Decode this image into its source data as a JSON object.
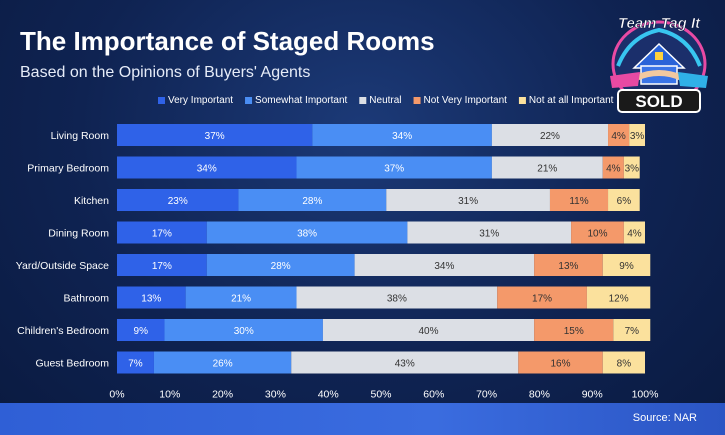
{
  "title": "The Importance of Staged Rooms",
  "subtitle": "Based on the Opinions of Buyers' Agents",
  "source": "Source: NAR",
  "logo": {
    "text_top": "Team Tag It",
    "text_sign": "SOLD",
    "icon": "house-handshake-icon"
  },
  "chart_data": {
    "type": "bar",
    "orientation": "horizontal",
    "stacked": true,
    "categories": [
      "Living Room",
      "Primary Bedroom",
      "Kitchen",
      "Dining Room",
      "Yard/Outside Space",
      "Bathroom",
      "Children's Bedroom",
      "Guest Bedroom"
    ],
    "series": [
      {
        "name": "Very Important",
        "color": "#2f62e8",
        "values": [
          37,
          34,
          23,
          17,
          17,
          13,
          9,
          7
        ]
      },
      {
        "name": "Somewhat Important",
        "color": "#4a8ef4",
        "values": [
          34,
          37,
          28,
          38,
          28,
          21,
          30,
          26
        ]
      },
      {
        "name": "Neutral",
        "color": "#dcdfe5",
        "values": [
          22,
          21,
          31,
          31,
          34,
          38,
          40,
          43
        ]
      },
      {
        "name": "Not Very Important",
        "color": "#f4996a",
        "values": [
          4,
          4,
          11,
          10,
          13,
          17,
          15,
          16
        ]
      },
      {
        "name": "Not at all Important",
        "color": "#fbe19d",
        "values": [
          3,
          3,
          6,
          4,
          9,
          12,
          7,
          8
        ]
      }
    ],
    "value_suffix": "%",
    "xlim": [
      0,
      100
    ],
    "xticks": [
      "0%",
      "10%",
      "20%",
      "30%",
      "40%",
      "50%",
      "60%",
      "70%",
      "80%",
      "90%",
      "100%"
    ],
    "legend_position": "top-right",
    "grid": false
  }
}
